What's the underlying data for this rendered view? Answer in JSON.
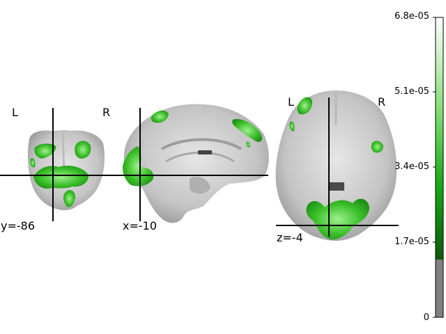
{
  "views": {
    "coronal": {
      "left_label": "L",
      "right_label": "R",
      "coord_label": "y=-86"
    },
    "sagittal": {
      "coord_label": "x=-10"
    },
    "axial": {
      "left_label": "L",
      "right_label": "R",
      "coord_label": "z=-4"
    }
  },
  "colorbar": {
    "ticks": [
      "6.8e-05",
      "5.1e-05",
      "3.4e-05",
      "1.7e-05",
      "0"
    ],
    "colors": {
      "top": "#ffffff",
      "mid": "#22bb22",
      "low": "#116611",
      "threshold": "#808080"
    }
  },
  "colors": {
    "activation": "#33bb22",
    "activation_bright": "#7be06b",
    "brain": "#c9c9c9",
    "crosshair": "#000000"
  }
}
